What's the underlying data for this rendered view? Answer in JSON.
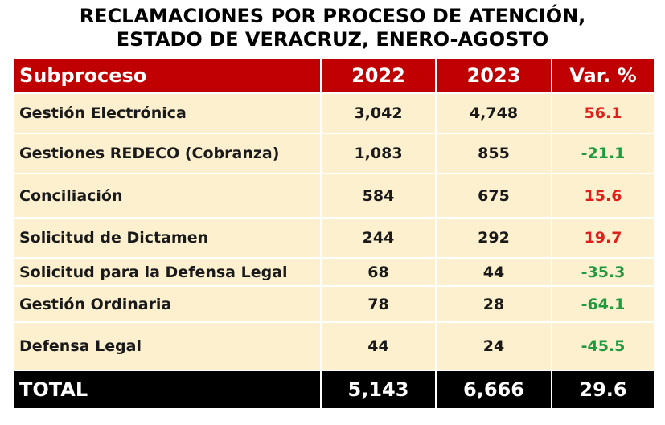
{
  "title_lines": [
    "RECLAMACIONES POR PROCESO DE ATENCIÓN,",
    "ESTADO DE VERACRUZ, ENERO-AGOSTO"
  ],
  "colors": {
    "header_bg": "#c00000",
    "row_bg": "#fdf0cf",
    "positive": "#e0201b",
    "negative": "#1f9a3f",
    "total_bg": "#000000"
  },
  "chart_data": {
    "type": "table",
    "columns": [
      "Subproceso",
      "2022",
      "2023",
      "Var. %"
    ],
    "rows": [
      {
        "label": "Gestión Electrónica",
        "v2022": "3,042",
        "v2023": "4,748",
        "var": "56.1"
      },
      {
        "label": "Gestiones REDECO (Cobranza)",
        "v2022": "1,083",
        "v2023": "855",
        "var": "-21.1"
      },
      {
        "label": "Conciliación",
        "v2022": "584",
        "v2023": "675",
        "var": "15.6"
      },
      {
        "label": "Solicitud de Dictamen",
        "v2022": "244",
        "v2023": "292",
        "var": "19.7"
      },
      {
        "label": "Solicitud para la Defensa Legal",
        "v2022": "68",
        "v2023": "44",
        "var": "-35.3"
      },
      {
        "label": "Gestión Ordinaria",
        "v2022": "78",
        "v2023": "28",
        "var": "-64.1"
      },
      {
        "label": "Defensa Legal",
        "v2022": "44",
        "v2023": "24",
        "var": "-45.5"
      }
    ],
    "total": {
      "label": "TOTAL",
      "v2022": "5,143",
      "v2023": "6,666",
      "var": "29.6"
    }
  }
}
